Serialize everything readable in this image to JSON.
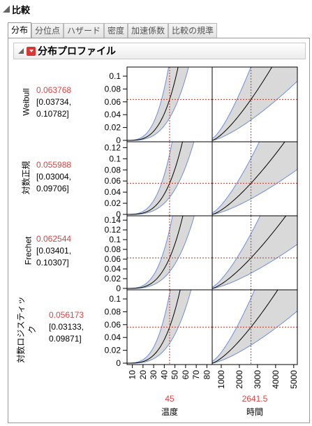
{
  "outline_title": "比較",
  "tabs": [
    {
      "label": "分布",
      "active": true
    },
    {
      "label": "分位点",
      "active": false
    },
    {
      "label": "ハザード",
      "active": false
    },
    {
      "label": "密度",
      "active": false
    },
    {
      "label": "加速係数",
      "active": false
    },
    {
      "label": "比較の規準",
      "active": false
    }
  ],
  "section_title": "分布プロファイル",
  "rows": [
    {
      "name": "Weibull",
      "estimate": "0.063768",
      "ci_low": "[0.03734,",
      "ci_high": "0.10782]",
      "y_max": 0.1,
      "y_ticks": [
        0,
        0.02,
        0.04,
        0.06,
        0.08,
        0.1
      ],
      "tick_labels": [
        "0",
        "0.02",
        "0.04",
        "0.06",
        "0.08",
        "0.1"
      ],
      "y_top": 0.112,
      "ref_y": 0.063768
    },
    {
      "name": "対数正規",
      "estimate": "0.055988",
      "ci_low": "[0.03004,",
      "ci_high": "0.09706]",
      "y_max": 0.12,
      "y_ticks": [
        0,
        0.02,
        0.04,
        0.06,
        0.08,
        0.1,
        0.12
      ],
      "tick_labels": [
        "0",
        "0.02",
        "0.04",
        "0.06",
        "0.08",
        "0.1",
        "0.12"
      ],
      "y_top": 0.128,
      "ref_y": 0.055988
    },
    {
      "name": "Frechet",
      "estimate": "0.062544",
      "ci_low": "[0.03401,",
      "ci_high": "0.10307]",
      "y_max": 0.14,
      "y_ticks": [
        0,
        0.02,
        0.04,
        0.06,
        0.08,
        0.1,
        0.12,
        0.14
      ],
      "tick_labels": [
        "0",
        "0.02",
        "0.04",
        "0.06",
        "0.08",
        "0.1",
        "0.12",
        "0.14"
      ],
      "y_top": 0.146,
      "ref_y": 0.062544
    },
    {
      "name": "対数ロジスティック",
      "estimate": "0.056173",
      "ci_low": "[0.03133,",
      "ci_high": "0.09871]",
      "y_max": 0.1,
      "y_ticks": [
        0,
        0.02,
        0.04,
        0.06,
        0.08,
        0.1
      ],
      "tick_labels": [
        "0",
        "0.02",
        "0.04",
        "0.06",
        "0.08",
        "0.1"
      ],
      "y_top": 0.112,
      "ref_y": 0.056173
    }
  ],
  "columns": [
    {
      "axis_label": "温度",
      "current_value": "45",
      "x_min": 5,
      "x_max": 85,
      "ref_x": 45,
      "ticks": [
        10,
        20,
        30,
        40,
        50,
        60,
        70,
        80
      ],
      "tick_labels": [
        "10",
        "20",
        "30",
        "40",
        "50",
        "60",
        "70",
        "80"
      ]
    },
    {
      "axis_label": "時間",
      "current_value": "2641.5",
      "x_min": 500,
      "x_max": 5200,
      "ref_x": 2641.5,
      "ticks": [
        1000,
        2000,
        3000,
        4000,
        5000
      ],
      "tick_labels": [
        "1000",
        "2000",
        "3000",
        "4000",
        "5000"
      ]
    }
  ],
  "colors": {
    "curve": "#000000",
    "band_fill": "#d9d9d9",
    "band_edge": "#6f8fd6",
    "ref_line": "#c0392b",
    "value_text": "#d64545"
  }
}
